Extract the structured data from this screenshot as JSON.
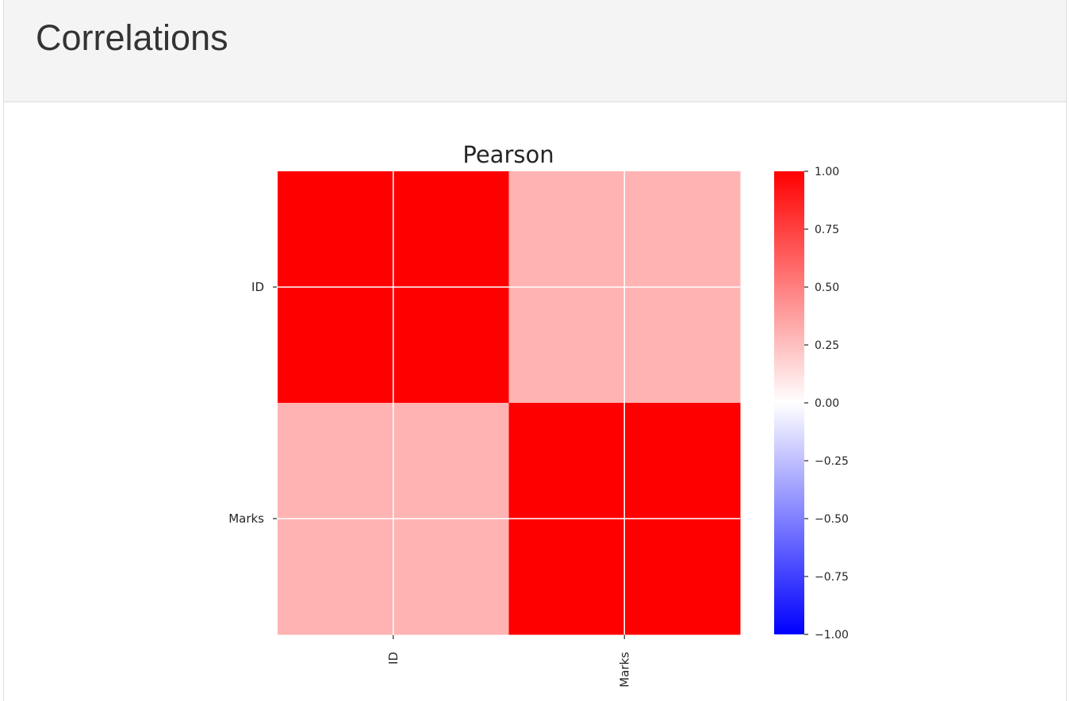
{
  "header": {
    "title": "Correlations"
  },
  "chart_data": {
    "type": "heatmap",
    "title": "Pearson",
    "xlabel": "",
    "ylabel": "",
    "rows": [
      "ID",
      "Marks"
    ],
    "columns": [
      "ID",
      "Marks"
    ],
    "values": [
      [
        1.0,
        0.3
      ],
      [
        0.3,
        1.0
      ]
    ],
    "colormap": {
      "min": -1.0,
      "max": 1.0,
      "low_color": "#0000ff",
      "mid_color": "#ffffff",
      "high_color": "#ff0000"
    },
    "colorbar_ticks": [
      "1.00",
      "0.75",
      "0.50",
      "0.25",
      "0.00",
      "−0.25",
      "−0.50",
      "−0.75",
      "−1.00"
    ],
    "colorbar_tick_values": [
      1.0,
      0.75,
      0.5,
      0.25,
      0.0,
      -0.25,
      -0.5,
      -0.75,
      -1.0
    ],
    "grid": true
  }
}
